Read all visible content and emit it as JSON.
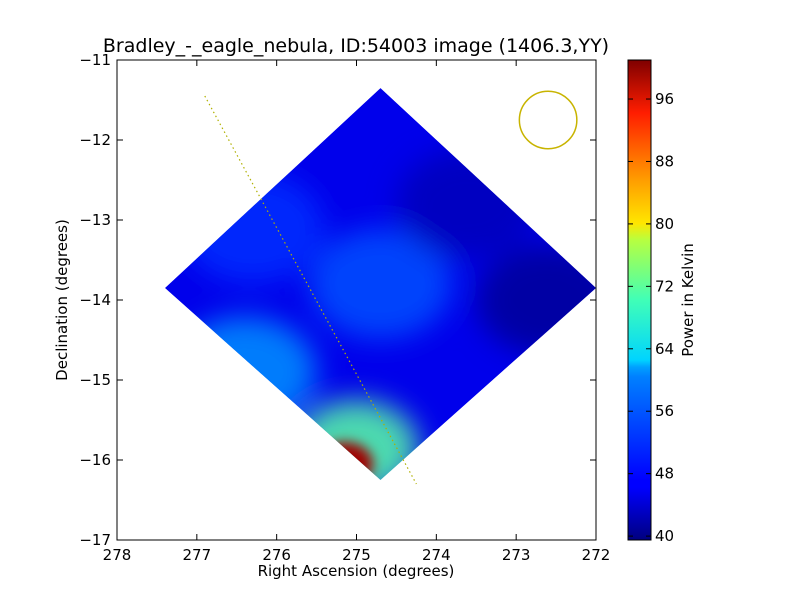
{
  "chart_data": {
    "type": "heatmap",
    "title": "Bradley_-_eagle_nebula, ID:54003 image (1406.3,YY)",
    "xlabel": "Right Ascension (degrees)",
    "ylabel": "Declination (degrees)",
    "xlim": [
      278,
      272
    ],
    "ylim": [
      -17,
      -11
    ],
    "x_ticks": [
      278,
      277,
      276,
      275,
      274,
      273,
      272
    ],
    "y_ticks": [
      -11,
      -12,
      -13,
      -14,
      -15,
      -16,
      -17
    ],
    "x_tick_labels": [
      "278",
      "277",
      "276",
      "275",
      "274",
      "273",
      "272"
    ],
    "y_tick_labels": [
      "−11",
      "−12",
      "−13",
      "−14",
      "−15",
      "−16",
      "−17"
    ],
    "grid": false,
    "colormap": "jet",
    "colorbar": {
      "label": "Power in Kelvin",
      "range": [
        39.5,
        101
      ],
      "ticks": [
        40,
        48,
        56,
        64,
        72,
        80,
        88,
        96
      ],
      "tick_labels": [
        "40",
        "48",
        "56",
        "64",
        "72",
        "80",
        "88",
        "96"
      ]
    },
    "map": {
      "background_level": 46,
      "corners_ra_dec": [
        [
          274.7,
          -11.35
        ],
        [
          277.4,
          -13.85
        ],
        [
          274.7,
          -16.25
        ],
        [
          272.0,
          -13.85
        ]
      ],
      "features": [
        {
          "ra": 274.7,
          "dec": -13.8,
          "value": 52
        },
        {
          "ra": 276.3,
          "dec": -13.1,
          "value": 50
        },
        {
          "ra": 272.6,
          "dec": -14.0,
          "value": 41
        },
        {
          "ra": 273.6,
          "dec": -12.8,
          "value": 43
        },
        {
          "ra": 275.0,
          "dec": -15.85,
          "value": 68
        },
        {
          "ra": 275.15,
          "dec": -16.05,
          "value": 99
        },
        {
          "ra": 276.4,
          "dec": -14.9,
          "value": 56
        }
      ]
    },
    "overlays": {
      "line_start": [
        276.9,
        -11.45
      ],
      "line_end": [
        274.25,
        -16.3
      ],
      "line_color": "#b0b000",
      "beam_circle_center": [
        272.6,
        -11.75
      ],
      "beam_circle_radius_deg": 0.36,
      "beam_circle_color": "#c8b400"
    },
    "colors": {
      "frame": "#000000",
      "background": "#ffffff"
    }
  }
}
